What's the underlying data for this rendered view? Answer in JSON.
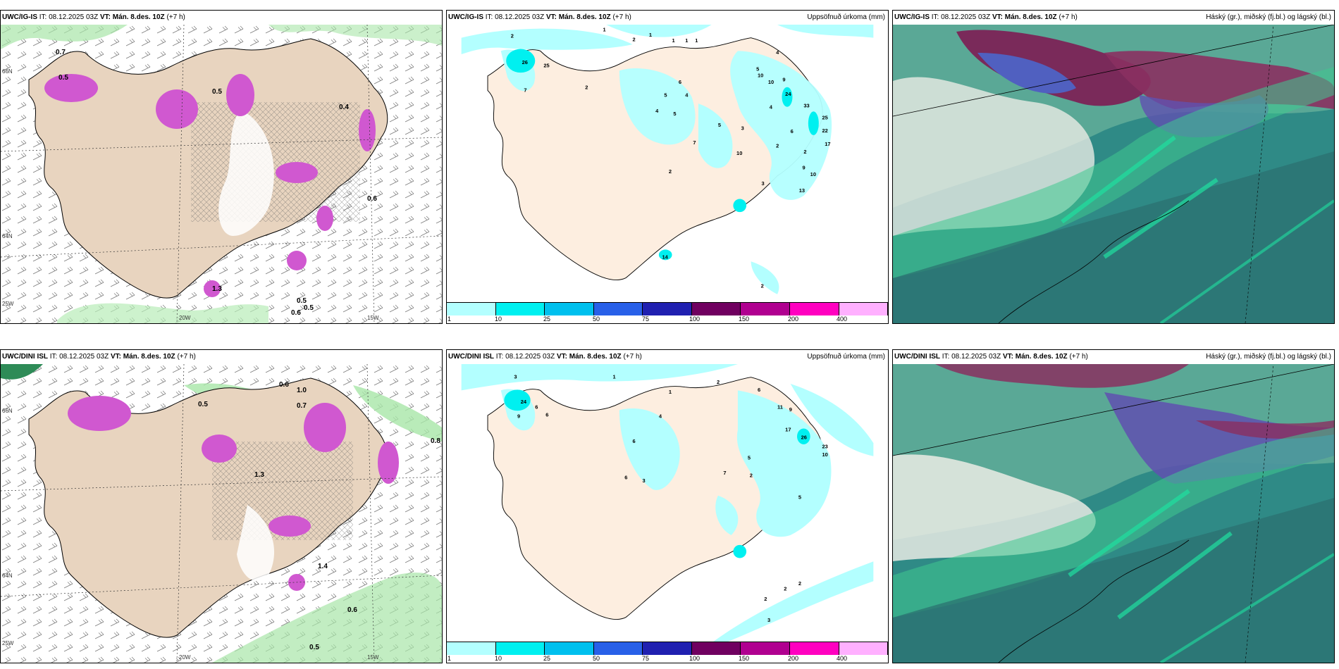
{
  "top_row": {
    "panel1": {
      "model": "UWC/IG-IS",
      "it_label": "IT:",
      "it_value": "08.12.2025 03Z",
      "vt_label": "VT:",
      "vt_value": "Mán. 8.des. 10Z",
      "lead": "(+7 h)",
      "right_title": ""
    },
    "panel2": {
      "model": "UWC/IG-IS",
      "it_label": "IT:",
      "it_value": "08.12.2025 03Z",
      "vt_label": "VT:",
      "vt_value": "Mán. 8.des. 10Z",
      "lead": "(+7 h)",
      "right_title": "Uppsöfnuð úrkoma (mm)"
    },
    "panel3": {
      "model": "UWC/IG-IS",
      "it_label": "IT:",
      "it_value": "08.12.2025 03Z",
      "vt_label": "VT:",
      "vt_value": "Mán. 8.des. 10Z",
      "lead": "(+7 h)",
      "right_title": "Háský (gr.), miðský (fj.bl.) og lágský (bl.)"
    }
  },
  "bottom_row": {
    "panel1": {
      "model": "UWC/DINI ISL",
      "it_label": "IT:",
      "it_value": "08.12.2025 03Z",
      "vt_label": "VT:",
      "vt_value": "Mán. 8.des. 10Z",
      "lead": "(+7 h)",
      "right_title": ""
    },
    "panel2": {
      "model": "UWC/DINI ISL",
      "it_label": "IT:",
      "it_value": "08.12.2025 03Z",
      "vt_label": "VT:",
      "vt_value": "Mán. 8.des. 10Z",
      "lead": "(+7 h)",
      "right_title": "Uppsöfnuð úrkoma (mm)"
    },
    "panel3": {
      "model": "UWC/DINI ISL",
      "it_label": "IT:",
      "it_value": "08.12.2025 03Z",
      "vt_label": "VT:",
      "vt_value": "Mán. 8.des. 10Z",
      "lead": "(+7 h)",
      "right_title": "Háský (gr.), miðský (fj.bl.) og lágský (bl.)"
    }
  },
  "legend": {
    "ticks": [
      "1",
      "10",
      "25",
      "50",
      "75",
      "100",
      "150",
      "200",
      "400"
    ],
    "colors": [
      "#b3ffff",
      "#00f0f0",
      "#00c0ee",
      "#2860e8",
      "#2020b0",
      "#700060",
      "#b00090",
      "#ff00c0",
      "#ffb0ff"
    ]
  },
  "grid_labels": {
    "lon_20w": "20W",
    "lon_15w": "15W",
    "lat_66n": "66N",
    "lat_64n": "64N",
    "lon_25w": "25W"
  },
  "precip_labels_top": [
    "2",
    "1",
    "2",
    "1",
    "1",
    "1",
    "1",
    "26",
    "25",
    "7",
    "2",
    "5",
    "6",
    "4",
    "5",
    "4",
    "4",
    "5",
    "10",
    "10",
    "9",
    "24",
    "33",
    "25",
    "22",
    "17",
    "4",
    "5",
    "3",
    "6",
    "10",
    "7",
    "2",
    "2",
    "3",
    "13",
    "9",
    "10",
    "2",
    "14",
    "2"
  ],
  "precip_labels_bottom": [
    "3",
    "1",
    "2",
    "1",
    "6",
    "24",
    "6",
    "9",
    "6",
    "4",
    "6",
    "11",
    "9",
    "17",
    "26",
    "23",
    "10",
    "5",
    "6",
    "7",
    "3",
    "2",
    "5",
    "2",
    "2",
    "2",
    "3"
  ],
  "wind_values_top": [
    "0.7",
    "0.5",
    "0.5",
    "0.4",
    "0.6",
    "1.3",
    "0.5",
    "0.6",
    "0.5"
  ],
  "wind_values_bottom": [
    "1.0",
    "0.7",
    "0.5",
    "0.6",
    "1.3",
    "1.4",
    "0.8",
    "0.6",
    "0.5"
  ]
}
